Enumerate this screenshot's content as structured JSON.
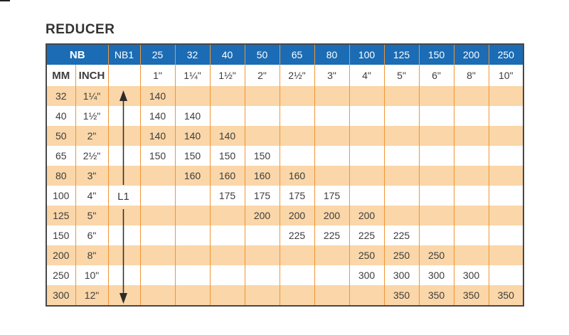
{
  "title": "REDUCER",
  "table": {
    "header": {
      "nb_label": "NB",
      "nb1_label": "NB1",
      "size_cols": [
        "25",
        "32",
        "40",
        "50",
        "65",
        "80",
        "100",
        "125",
        "150",
        "200",
        "250"
      ],
      "mm_label": "MM",
      "inch_label": "INCH",
      "inch_cols": [
        "1\"",
        "1¼\"",
        "1½\"",
        "2\"",
        "2½\"",
        "3\"",
        "4\"",
        "5\"",
        "6\"",
        "8\"",
        "10\""
      ]
    },
    "arrow_label": "L1",
    "rows": [
      {
        "mm": "32",
        "inch": "1¼\"",
        "values": [
          "140",
          "",
          "",
          "",
          "",
          "",
          "",
          "",
          "",
          "",
          ""
        ]
      },
      {
        "mm": "40",
        "inch": "1½\"",
        "values": [
          "140",
          "140",
          "",
          "",
          "",
          "",
          "",
          "",
          "",
          "",
          ""
        ]
      },
      {
        "mm": "50",
        "inch": "2\"",
        "values": [
          "140",
          "140",
          "140",
          "",
          "",
          "",
          "",
          "",
          "",
          "",
          ""
        ]
      },
      {
        "mm": "65",
        "inch": "2½\"",
        "values": [
          "150",
          "150",
          "150",
          "150",
          "",
          "",
          "",
          "",
          "",
          "",
          ""
        ]
      },
      {
        "mm": "80",
        "inch": "3\"",
        "values": [
          "",
          "160",
          "160",
          "160",
          "160",
          "",
          "",
          "",
          "",
          "",
          ""
        ]
      },
      {
        "mm": "100",
        "inch": "4\"",
        "values": [
          "",
          "",
          "175",
          "175",
          "175",
          "175",
          "",
          "",
          "",
          "",
          ""
        ]
      },
      {
        "mm": "125",
        "inch": "5\"",
        "values": [
          "",
          "",
          "",
          "200",
          "200",
          "200",
          "200",
          "",
          "",
          "",
          ""
        ]
      },
      {
        "mm": "150",
        "inch": "6\"",
        "values": [
          "",
          "",
          "",
          "",
          "225",
          "225",
          "225",
          "225",
          "",
          "",
          ""
        ]
      },
      {
        "mm": "200",
        "inch": "8\"",
        "values": [
          "",
          "",
          "",
          "",
          "",
          "",
          "250",
          "250",
          "250",
          "",
          ""
        ]
      },
      {
        "mm": "250",
        "inch": "10\"",
        "values": [
          "",
          "",
          "",
          "",
          "",
          "",
          "300",
          "300",
          "300",
          "300",
          ""
        ]
      },
      {
        "mm": "300",
        "inch": "12\"",
        "values": [
          "",
          "",
          "",
          "",
          "",
          "",
          "",
          "350",
          "350",
          "350",
          "350"
        ]
      }
    ]
  },
  "colors": {
    "header_blue": "#1b6cb4",
    "stripe_peach": "#fad6a8",
    "grid_orange": "#ef9638",
    "outer_border": "#474747",
    "text": "#3d3d3d"
  }
}
